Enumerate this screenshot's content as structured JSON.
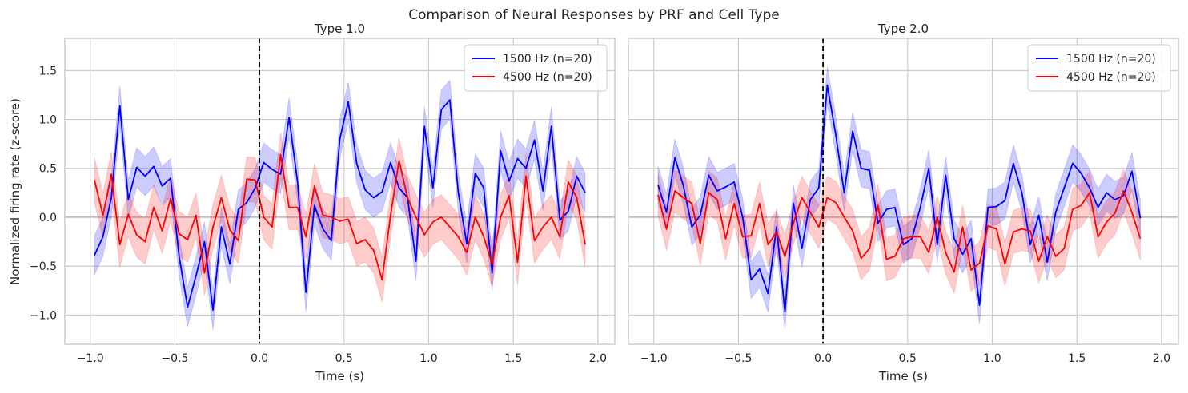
{
  "figure": {
    "title": "Comparison of Neural Responses by PRF and Cell Type",
    "ylabel": "Normalized firing rate (z-score)"
  },
  "colors": {
    "background": "#ffffff",
    "grid": "#cccccc",
    "axis_spine": "#cccccc",
    "text": "#262626",
    "series_1500": "#0000ff",
    "series_4500": "#ff0000",
    "stimulus_line": "#000000",
    "zero_line": "#b0b0b0"
  },
  "chart_data": [
    {
      "type": "line",
      "title": "Type 1.0",
      "xlabel": "Time (s)",
      "ylabel": "Normalized firing rate (z-score)",
      "xlim": [
        -1.15,
        2.1
      ],
      "ylim": [
        -1.3,
        1.83
      ],
      "xticks": [
        -1.0,
        -0.5,
        0.0,
        0.5,
        1.0,
        1.5,
        2.0
      ],
      "xtick_labels": [
        "−1.0",
        "−0.5",
        "0.0",
        "0.5",
        "1.0",
        "1.5",
        "2.0"
      ],
      "yticks": [
        -1.0,
        -0.5,
        0.0,
        0.5,
        1.0,
        1.5
      ],
      "ytick_labels": [
        "−1.0",
        "−0.5",
        "0.0",
        "0.5",
        "1.0",
        "1.5"
      ],
      "grid": true,
      "legend_position": "upper right",
      "vline_x": 0,
      "hline_y": 0,
      "series": [
        {
          "name": "1500 Hz (n=20)",
          "color": "#0000ff",
          "x_start": -0.975,
          "x_step": 0.05,
          "values": [
            -0.39,
            -0.2,
            0.2,
            1.14,
            0.18,
            0.51,
            0.42,
            0.52,
            0.32,
            0.4,
            -0.4,
            -0.92,
            -0.6,
            -0.25,
            -0.95,
            -0.1,
            -0.48,
            0.08,
            0.15,
            0.3,
            0.56,
            0.49,
            0.44,
            1.02,
            0.36,
            -0.77,
            0.12,
            -0.12,
            -0.24,
            0.8,
            1.18,
            0.55,
            0.28,
            0.2,
            0.26,
            0.56,
            0.3,
            0.2,
            -0.45,
            0.93,
            0.3,
            1.1,
            1.2,
            0.25,
            -0.27,
            0.45,
            0.3,
            -0.57,
            0.68,
            0.37,
            0.6,
            0.5,
            0.79,
            0.27,
            0.93,
            -0.03,
            0.06,
            0.42,
            0.25
          ],
          "band": 0.2
        },
        {
          "name": "4500 Hz (n=20)",
          "color": "#ff0000",
          "x_start": -0.975,
          "x_step": 0.05,
          "values": [
            0.38,
            0.02,
            0.44,
            -0.28,
            0.03,
            -0.18,
            -0.25,
            0.1,
            -0.14,
            0.19,
            -0.17,
            -0.23,
            0.02,
            -0.57,
            -0.1,
            0.2,
            -0.13,
            -0.24,
            0.39,
            0.38,
            0.0,
            -0.1,
            0.64,
            0.1,
            0.1,
            -0.2,
            0.32,
            0.02,
            0.0,
            -0.04,
            -0.02,
            -0.27,
            -0.23,
            -0.34,
            -0.64,
            0.02,
            0.58,
            0.2,
            0.0,
            -0.18,
            -0.05,
            0.0,
            -0.1,
            -0.2,
            -0.36,
            0.0,
            -0.2,
            -0.48,
            0.0,
            0.22,
            -0.46,
            0.42,
            -0.24,
            -0.1,
            0.0,
            -0.2,
            0.36,
            0.2,
            -0.28
          ],
          "band": 0.23
        }
      ]
    },
    {
      "type": "line",
      "title": "Type 2.0",
      "xlabel": "Time (s)",
      "ylabel": "",
      "xlim": [
        -1.15,
        2.1
      ],
      "ylim": [
        -1.3,
        1.83
      ],
      "xticks": [
        -1.0,
        -0.5,
        0.0,
        0.5,
        1.0,
        1.5,
        2.0
      ],
      "xtick_labels": [
        "−1.0",
        "−0.5",
        "0.0",
        "0.5",
        "1.0",
        "1.5",
        "2.0"
      ],
      "yticks": [
        -1.0,
        -0.5,
        0.0,
        0.5,
        1.0,
        1.5
      ],
      "ytick_labels": [],
      "grid": true,
      "legend_position": "upper right",
      "vline_x": 0,
      "hline_y": 0,
      "series": [
        {
          "name": "1500 Hz (n=20)",
          "color": "#0000ff",
          "x_start": -0.975,
          "x_step": 0.05,
          "values": [
            0.33,
            0.05,
            0.61,
            0.32,
            -0.1,
            0.02,
            0.43,
            0.27,
            0.31,
            0.36,
            0.0,
            -0.64,
            -0.53,
            -0.78,
            -0.1,
            -0.97,
            0.14,
            -0.32,
            0.18,
            0.3,
            1.35,
            0.85,
            0.25,
            0.88,
            0.5,
            0.48,
            -0.06,
            0.08,
            0.1,
            -0.28,
            -0.22,
            0.1,
            0.5,
            -0.28,
            0.43,
            -0.22,
            -0.38,
            -0.22,
            -0.9,
            0.1,
            0.11,
            0.17,
            0.55,
            0.25,
            -0.28,
            0.02,
            -0.46,
            0.05,
            0.3,
            0.55,
            0.45,
            0.3,
            0.1,
            0.25,
            0.18,
            0.22,
            0.47,
            -0.01
          ],
          "band": 0.19
        },
        {
          "name": "4500 Hz (n=20)",
          "color": "#ff0000",
          "x_start": -0.975,
          "x_step": 0.05,
          "values": [
            0.23,
            -0.12,
            0.27,
            0.2,
            0.14,
            -0.27,
            0.25,
            0.18,
            -0.22,
            0.14,
            -0.2,
            -0.19,
            0.14,
            -0.28,
            -0.15,
            -0.4,
            -0.06,
            0.2,
            0.05,
            -0.1,
            0.2,
            0.15,
            0.0,
            -0.14,
            -0.42,
            -0.32,
            0.12,
            -0.43,
            -0.4,
            -0.22,
            -0.2,
            -0.2,
            -0.36,
            0.0,
            -0.36,
            -0.56,
            -0.1,
            -0.54,
            -0.47,
            -0.09,
            -0.12,
            -0.48,
            -0.15,
            -0.12,
            -0.14,
            -0.45,
            -0.2,
            -0.4,
            -0.32,
            0.08,
            0.12,
            0.25,
            -0.2,
            -0.05,
            0.04,
            0.27,
            0.05,
            -0.22
          ],
          "band": 0.22
        }
      ]
    }
  ]
}
